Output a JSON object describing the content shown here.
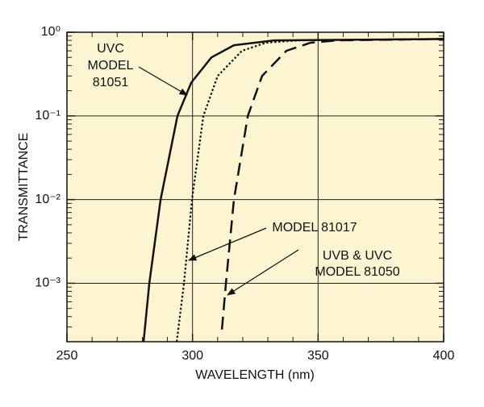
{
  "chart_data": {
    "type": "line",
    "xlabel": "WAVELENGTH (nm)",
    "ylabel": "TRANSMITTANCE",
    "xlim": [
      250,
      400
    ],
    "xticks": [
      250,
      300,
      350,
      400
    ],
    "xminorticks": [
      260,
      270,
      280,
      290,
      310,
      320,
      330,
      340,
      360,
      370,
      380,
      390
    ],
    "ylim": [
      0.0002,
      1
    ],
    "ylog": true,
    "yticks": [
      {
        "value": 1,
        "label": "10⁰"
      },
      {
        "value": 0.1,
        "label": "10⁻¹"
      },
      {
        "value": 0.01,
        "label": "10⁻²"
      },
      {
        "value": 0.001,
        "label": "10⁻³"
      }
    ],
    "yminorticks": [
      0.0003,
      0.0004,
      0.0005,
      0.0006,
      0.0007,
      0.0008,
      0.0009,
      0.002,
      0.003,
      0.004,
      0.005,
      0.006,
      0.007,
      0.008,
      0.009,
      0.02,
      0.03,
      0.04,
      0.05,
      0.06,
      0.07,
      0.08,
      0.09,
      0.2,
      0.3,
      0.4,
      0.5,
      0.6,
      0.7,
      0.8,
      0.9
    ],
    "xgrid": [
      300,
      350
    ],
    "grid": true,
    "background": "#fdf5d2",
    "series": [
      {
        "color": "#111111",
        "style": "solid",
        "x": [
          280.5,
          282.8,
          287.3,
          294,
          299.5,
          307.5,
          316.5,
          332.5,
          400
        ],
        "values": [
          0.0002,
          0.001,
          0.01,
          0.1,
          0.25,
          0.5,
          0.7,
          0.8,
          0.83
        ]
      },
      {
        "color": "#111111",
        "style": "dotted",
        "x": [
          293.7,
          296.6,
          299.8,
          304.3,
          310,
          319.7,
          329.3,
          342,
          400
        ],
        "values": [
          0.0002,
          0.001,
          0.01,
          0.1,
          0.3,
          0.6,
          0.75,
          0.8,
          0.83
        ]
      },
      {
        "color": "#111111",
        "style": "dashed",
        "x": [
          311.7,
          313.3,
          316.5,
          322,
          327.7,
          337.4,
          347,
          358,
          400
        ],
        "values": [
          0.00028,
          0.001,
          0.01,
          0.1,
          0.3,
          0.6,
          0.75,
          0.8,
          0.83
        ]
      }
    ],
    "annotations": [
      {
        "lines": [
          "UVC",
          "MODEL",
          "81051"
        ]
      },
      {
        "lines": [
          "MODEL 81017"
        ]
      },
      {
        "lines": [
          "UVB & UVC",
          "MODEL 81050"
        ]
      }
    ]
  }
}
